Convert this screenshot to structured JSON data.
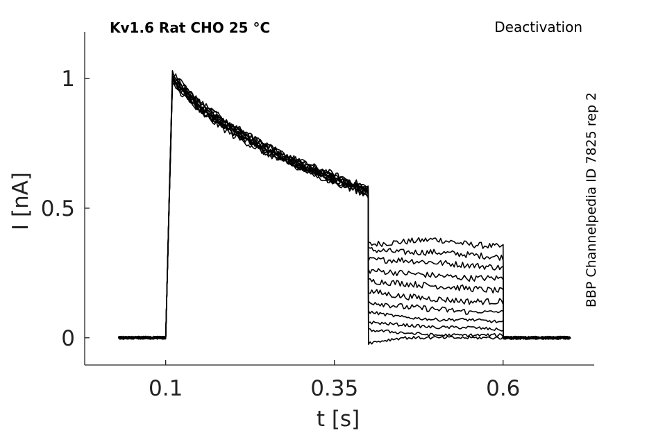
{
  "chart_data": {
    "type": "line",
    "title": "Kv1.6  Rat  CHO  25 °C",
    "protocol": "Deactivation",
    "source": "BBP Channelpedia ID 7825 rep 2",
    "xlabel": "t [s]",
    "ylabel": "I [nA]",
    "xlim": [
      -0.02,
      0.735
    ],
    "ylim": [
      -0.105,
      1.18
    ],
    "xticks": [
      0.1,
      0.35,
      0.6
    ],
    "xtick_labels": [
      "0.1",
      "0.35",
      "0.6"
    ],
    "yticks": [
      0,
      0.5,
      1
    ],
    "ytick_labels": [
      "0",
      "0.5",
      "1"
    ],
    "grid": false,
    "legend": "none",
    "trace_color": "#000000",
    "series": [
      {
        "x": [
          0.03,
          0.1,
          0.11,
          0.15,
          0.2,
          0.25,
          0.3,
          0.35,
          0.4,
          0.4005,
          0.45,
          0.5,
          0.55,
          0.6,
          0.6005,
          0.7
        ],
        "y": [
          0,
          0,
          1.0,
          0.89,
          0.8,
          0.72,
          0.66,
          0.61,
          0.56,
          0.36,
          0.37,
          0.38,
          0.36,
          0.35,
          0,
          0
        ]
      },
      {
        "x": [
          0.03,
          0.1,
          0.11,
          0.15,
          0.2,
          0.25,
          0.3,
          0.35,
          0.4,
          0.4005,
          0.45,
          0.5,
          0.55,
          0.6,
          0.6005,
          0.7
        ],
        "y": [
          0,
          0,
          1.01,
          0.9,
          0.81,
          0.73,
          0.67,
          0.62,
          0.57,
          0.34,
          0.33,
          0.33,
          0.32,
          0.31,
          0,
          0
        ]
      },
      {
        "x": [
          0.03,
          0.1,
          0.11,
          0.15,
          0.2,
          0.25,
          0.3,
          0.35,
          0.4,
          0.4005,
          0.45,
          0.5,
          0.55,
          0.6,
          0.6005,
          0.7
        ],
        "y": [
          0,
          0,
          0.99,
          0.88,
          0.79,
          0.72,
          0.66,
          0.61,
          0.56,
          0.3,
          0.3,
          0.29,
          0.28,
          0.27,
          0,
          0
        ]
      },
      {
        "x": [
          0.03,
          0.1,
          0.11,
          0.15,
          0.2,
          0.25,
          0.3,
          0.35,
          0.4,
          0.4005,
          0.45,
          0.5,
          0.55,
          0.6,
          0.6005,
          0.7
        ],
        "y": [
          0,
          0,
          1.02,
          0.91,
          0.82,
          0.74,
          0.68,
          0.63,
          0.58,
          0.26,
          0.25,
          0.24,
          0.23,
          0.23,
          0,
          0
        ]
      },
      {
        "x": [
          0.03,
          0.1,
          0.11,
          0.15,
          0.2,
          0.25,
          0.3,
          0.35,
          0.4,
          0.4005,
          0.45,
          0.5,
          0.55,
          0.6,
          0.6005,
          0.7
        ],
        "y": [
          0,
          0,
          1.0,
          0.89,
          0.8,
          0.73,
          0.67,
          0.62,
          0.57,
          0.22,
          0.21,
          0.2,
          0.19,
          0.18,
          0,
          0
        ]
      },
      {
        "x": [
          0.03,
          0.1,
          0.11,
          0.15,
          0.2,
          0.25,
          0.3,
          0.35,
          0.4,
          0.4005,
          0.45,
          0.5,
          0.55,
          0.6,
          0.6005,
          0.7
        ],
        "y": [
          0,
          0,
          0.98,
          0.87,
          0.78,
          0.71,
          0.65,
          0.6,
          0.55,
          0.18,
          0.16,
          0.15,
          0.14,
          0.14,
          0,
          0
        ]
      },
      {
        "x": [
          0.03,
          0.1,
          0.11,
          0.15,
          0.2,
          0.25,
          0.3,
          0.35,
          0.4,
          0.4005,
          0.45,
          0.5,
          0.55,
          0.6,
          0.6005,
          0.7
        ],
        "y": [
          0,
          0,
          1.01,
          0.9,
          0.81,
          0.74,
          0.68,
          0.62,
          0.57,
          0.14,
          0.12,
          0.11,
          0.1,
          0.1,
          0,
          0
        ]
      },
      {
        "x": [
          0.03,
          0.1,
          0.11,
          0.15,
          0.2,
          0.25,
          0.3,
          0.35,
          0.4,
          0.4005,
          0.45,
          0.5,
          0.55,
          0.6,
          0.6005,
          0.7
        ],
        "y": [
          0,
          0,
          0.99,
          0.88,
          0.79,
          0.72,
          0.66,
          0.61,
          0.56,
          0.1,
          0.08,
          0.07,
          0.07,
          0.06,
          0,
          0
        ]
      },
      {
        "x": [
          0.03,
          0.1,
          0.11,
          0.15,
          0.2,
          0.25,
          0.3,
          0.35,
          0.4,
          0.4005,
          0.45,
          0.5,
          0.55,
          0.6,
          0.6005,
          0.7
        ],
        "y": [
          0,
          0,
          1.0,
          0.89,
          0.8,
          0.72,
          0.66,
          0.61,
          0.56,
          0.06,
          0.05,
          0.04,
          0.04,
          0.03,
          0,
          0
        ]
      },
      {
        "x": [
          0.03,
          0.1,
          0.11,
          0.15,
          0.2,
          0.25,
          0.3,
          0.35,
          0.4,
          0.4005,
          0.45,
          0.5,
          0.55,
          0.6,
          0.6005,
          0.7
        ],
        "y": [
          0,
          0,
          1.02,
          0.91,
          0.82,
          0.74,
          0.67,
          0.62,
          0.57,
          0.03,
          0.02,
          0.01,
          0.01,
          0.01,
          0,
          0
        ]
      },
      {
        "x": [
          0.03,
          0.1,
          0.11,
          0.15,
          0.2,
          0.25,
          0.3,
          0.35,
          0.4,
          0.4005,
          0.45,
          0.5,
          0.55,
          0.6,
          0.6005,
          0.7
        ],
        "y": [
          0,
          0,
          0.99,
          0.88,
          0.79,
          0.71,
          0.65,
          0.6,
          0.55,
          -0.02,
          0,
          0,
          0,
          0,
          0,
          0
        ]
      }
    ]
  }
}
